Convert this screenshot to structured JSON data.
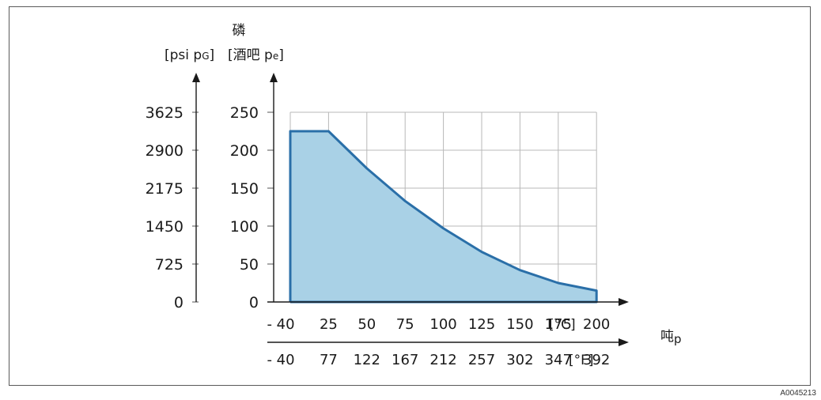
{
  "chart_data": {
    "type": "area",
    "y_title": "磷",
    "y_left_unit": "[psi p",
    "y_left_unit_sub": "G",
    "y_left_unit_end": "]",
    "y_right_unit": "[酒吧 p",
    "y_right_unit_sub": "e",
    "y_right_unit_end": "]",
    "x_title": "吨",
    "x_title_sub": "p",
    "x_top_ticks": [
      "- 40",
      "25",
      "50",
      "75",
      "100",
      "125",
      "150",
      "175",
      "200"
    ],
    "x_top_unit": "[°C]",
    "x_bottom_ticks": [
      "- 40",
      "77",
      "122",
      "167",
      "212",
      "257",
      "302",
      "347",
      "392"
    ],
    "x_bottom_unit": "[°F]",
    "y_bar_ticks": [
      "250",
      "200",
      "150",
      "100",
      "50",
      "0"
    ],
    "y_psi_ticks": [
      "3625",
      "2900",
      "2175",
      "1450",
      "725",
      "0"
    ],
    "ylim": [
      0,
      250
    ],
    "grid": true,
    "area_color": "#a9d1e6",
    "line_color": "#2a6fa8",
    "points": [
      {
        "idx": 0,
        "y": 0
      },
      {
        "idx": 0,
        "y": 225
      },
      {
        "idx": 1,
        "y": 225
      },
      {
        "idx": 2,
        "y": 176
      },
      {
        "idx": 3,
        "y": 133
      },
      {
        "idx": 4,
        "y": 97
      },
      {
        "idx": 5,
        "y": 66
      },
      {
        "idx": 6,
        "y": 42
      },
      {
        "idx": 7,
        "y": 25
      },
      {
        "idx": 8,
        "y": 15
      },
      {
        "idx": 8,
        "y": 0
      }
    ]
  },
  "figure_id": "A0045213"
}
